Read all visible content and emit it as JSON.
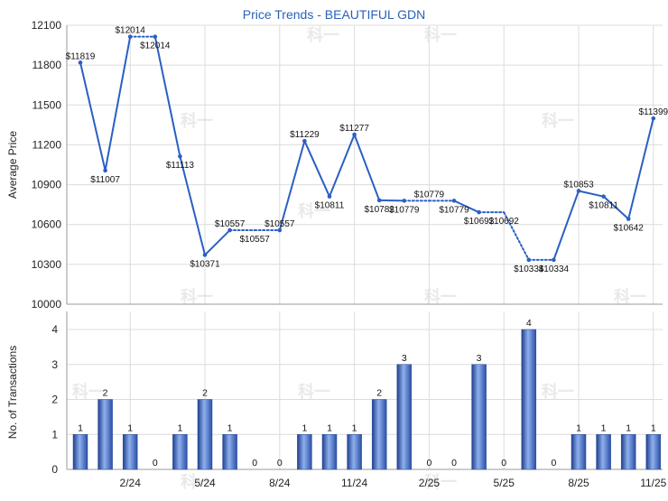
{
  "chart_data": [
    {
      "type": "line",
      "title": "Price Trends - BEAUTIFUL GDN",
      "xlabel": "",
      "ylabel": "Average Price",
      "ylim": [
        10000,
        12100
      ],
      "yticks": [
        "10000",
        "10300",
        "10600",
        "10900",
        "11200",
        "11500",
        "11800",
        "12100"
      ],
      "grid": true,
      "value_prefix": "$",
      "series": [
        {
          "color": "#2a5fc4",
          "values": [
            11819,
            11007,
            12014,
            12014,
            11113,
            10371,
            10557,
            10557,
            10557,
            11229,
            10811,
            11277,
            10782,
            10779,
            10779,
            10779,
            10692,
            10692,
            10334,
            10334,
            10853,
            10811,
            10642,
            11399
          ],
          "point_labels": [
            "$11819",
            "$11007",
            "$12014",
            "$12014",
            "$11113",
            "$10371",
            "$10557",
            "$10557",
            "$10557",
            "$11229",
            "$10811",
            "$11277",
            "$10782",
            "$10779",
            "$10779",
            "$10779",
            "$10692",
            "$10692",
            "$10334",
            "$10334",
            "$10853",
            "$10811",
            "$10642",
            "$11399"
          ],
          "observed": [
            true,
            true,
            true,
            true,
            true,
            true,
            true,
            false,
            true,
            true,
            true,
            true,
            true,
            true,
            false,
            true,
            true,
            false,
            true,
            true,
            true,
            true,
            true,
            true
          ]
        }
      ]
    },
    {
      "type": "bar",
      "xlabel": "",
      "ylabel": "No. of Transactions",
      "ylim": [
        0,
        4
      ],
      "yticks": [
        "0",
        "1",
        "2",
        "3",
        "4"
      ],
      "grid": true,
      "x_tick_labels": [
        "2/24",
        "5/24",
        "8/24",
        "11/24",
        "2/25",
        "5/25",
        "8/25",
        "11/25"
      ],
      "series": [
        {
          "color": "#3560c0",
          "values": [
            1,
            2,
            1,
            0,
            1,
            2,
            1,
            0,
            0,
            1,
            1,
            1,
            2,
            3,
            0,
            0,
            3,
            0,
            4,
            0,
            1,
            1,
            1,
            1
          ]
        }
      ]
    }
  ],
  "watermark_text": "科一"
}
